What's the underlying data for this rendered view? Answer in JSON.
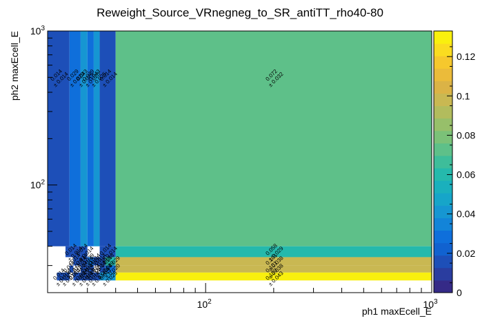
{
  "chart_data": {
    "type": "heatmap",
    "title": "Reweight_Source_VRnegneg_to_SR_antiTT_rho40-80",
    "xlabel": "ph1 maxEcell_E",
    "ylabel": "ph2 maxEcell_E",
    "x_scale": "log",
    "y_scale": "log",
    "xlim": [
      20,
      1000
    ],
    "ylim": [
      20,
      1000
    ],
    "x_ticks": [
      {
        "label": "10",
        "sup": "2",
        "value": 100
      },
      {
        "label": "10",
        "sup": "3",
        "value": 1000
      }
    ],
    "y_ticks": [
      {
        "label": "10",
        "sup": "2",
        "value": 100
      },
      {
        "label": "10",
        "sup": "3",
        "value": 1000
      }
    ],
    "zlim": [
      0,
      0.133
    ],
    "z_ticks": [
      "0",
      "0.02",
      "0.04",
      "0.06",
      "0.08",
      "0.1",
      "0.12"
    ],
    "z_tick_values": [
      0,
      0.02,
      0.04,
      0.06,
      0.08,
      0.1,
      0.12
    ],
    "palette": [
      "#352a87",
      "#2a3d9f",
      "#1d4fb8",
      "#1162d0",
      "#0f6fdb",
      "#1384d8",
      "#1696d2",
      "#16a5c9",
      "#1ab0bd",
      "#25b9ac",
      "#3ebd9a",
      "#5ec089",
      "#7bc178",
      "#97bf6a",
      "#b2bc5d",
      "#c9b852",
      "#dbb346",
      "#ebbb3a",
      "#f6c82d",
      "#fadc20",
      "#f9f00e"
    ],
    "x_edges": [
      20,
      22,
      24,
      25,
      26,
      28,
      30,
      32,
      34,
      36,
      40,
      50,
      1000
    ],
    "y_edges": [
      20,
      24,
      27,
      30,
      34,
      40,
      1000
    ],
    "cells": [
      {
        "xi": 0,
        "xj": 2,
        "yi": 5,
        "v": 0.014,
        "e": 0.014
      },
      {
        "xi": 3,
        "xj": 4,
        "yi": 5,
        "v": 0.029,
        "e": 0.02
      },
      {
        "xi": 5,
        "xj": 5,
        "yi": 5,
        "v": 0.043,
        "e": 0.025
      },
      {
        "xi": 6,
        "xj": 6,
        "yi": 5,
        "v": 0.029,
        "e": 0.02
      },
      {
        "xi": 7,
        "xj": 7,
        "yi": 5,
        "v": 0.043,
        "e": 0.025
      },
      {
        "xi": 8,
        "xj": 9,
        "yi": 5,
        "v": 0.014,
        "e": 0.014
      },
      {
        "xi": 10,
        "xj": 11,
        "yi": 5,
        "v": 0.072,
        "e": 0.032
      },
      {
        "xi": 2,
        "xj": 4,
        "yi": 4,
        "v": 0.014,
        "e": 0.014
      },
      {
        "xi": 5,
        "xj": 5,
        "yi": 4,
        "v": 0.014,
        "e": 0.014
      },
      {
        "xi": 8,
        "xj": 9,
        "yi": 4,
        "v": 0.014,
        "e": 0.014
      },
      {
        "xi": 10,
        "xj": 11,
        "yi": 4,
        "v": 0.058,
        "e": 0.029
      },
      {
        "xi": 4,
        "xj": 4,
        "yi": 3,
        "v": 0.014,
        "e": 0.014
      },
      {
        "xi": 5,
        "xj": 5,
        "yi": 3,
        "v": 0.014,
        "e": 0.014
      },
      {
        "xi": 6,
        "xj": 6,
        "yi": 3,
        "v": 0.029,
        "e": 0.02
      },
      {
        "xi": 7,
        "xj": 7,
        "yi": 3,
        "v": 0.014,
        "e": 0.014
      },
      {
        "xi": 8,
        "xj": 8,
        "yi": 3,
        "v": 0.014,
        "e": 0.014
      },
      {
        "xi": 9,
        "xj": 9,
        "yi": 3,
        "v": 0.058,
        "e": 0.029
      },
      {
        "xi": 10,
        "xj": 11,
        "yi": 3,
        "v": 0.101,
        "e": 0.038
      },
      {
        "xi": 3,
        "xj": 3,
        "yi": 2,
        "v": 0.014,
        "e": 0.014
      },
      {
        "xi": 5,
        "xj": 5,
        "yi": 2,
        "v": 0.014,
        "e": 0.014
      },
      {
        "xi": 6,
        "xj": 6,
        "yi": 2,
        "v": 0.014,
        "e": 0.014
      },
      {
        "xi": 8,
        "xj": 8,
        "yi": 2,
        "v": 0.014,
        "e": 0.014
      },
      {
        "xi": 9,
        "xj": 9,
        "yi": 2,
        "v": 0.029,
        "e": 0.02
      },
      {
        "xi": 10,
        "xj": 11,
        "yi": 2,
        "v": 0.101,
        "e": 0.038
      },
      {
        "xi": 1,
        "xj": 1,
        "yi": 1,
        "v": 0.014,
        "e": 0.014
      },
      {
        "xi": 2,
        "xj": 2,
        "yi": 1,
        "v": 0.014,
        "e": 0.014
      },
      {
        "xi": 4,
        "xj": 4,
        "yi": 1,
        "v": 0.014,
        "e": 0.014
      },
      {
        "xi": 5,
        "xj": 5,
        "yi": 1,
        "v": 0.014,
        "e": 0.014
      },
      {
        "xi": 6,
        "xj": 6,
        "yi": 1,
        "v": 0.014,
        "e": 0.014
      },
      {
        "xi": 7,
        "xj": 7,
        "yi": 1,
        "v": 0.014,
        "e": 0.014
      },
      {
        "xi": 8,
        "xj": 9,
        "yi": 1,
        "v": 0.043,
        "e": 0.025
      },
      {
        "xi": 10,
        "xj": 11,
        "yi": 1,
        "v": 0.13,
        "e": 0.043
      }
    ],
    "grid": false,
    "legend": "colorbar right"
  }
}
